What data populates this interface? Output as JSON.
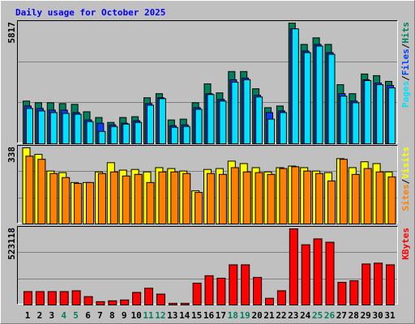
{
  "chart_data": [
    {
      "type": "bar",
      "title": "Daily usage for October 2025",
      "ylim": [
        0,
        5817
      ],
      "yticks": [
        5817
      ],
      "series": [
        {
          "name": "Hits",
          "color": "#00805C",
          "values": [
            2058,
            1979,
            1979,
            1939,
            1899,
            1543,
            1266,
            1029,
            1266,
            1306,
            2216,
            2414,
            1148,
            1187,
            1979,
            2889,
            2453,
            3482,
            3482,
            2651,
            1741,
            1820,
            5817,
            4788,
            5105,
            4788,
            2849,
            2414,
            3363,
            3284,
            3007
          ]
        },
        {
          "name": "Files",
          "color": "#0040FF",
          "values": [
            1820,
            1702,
            1622,
            1622,
            1504,
            1148,
            989,
            910,
            989,
            1108,
            1939,
            2216,
            871,
            910,
            1741,
            2414,
            2137,
            3086,
            3166,
            2335,
            1504,
            1583,
            5540,
            4471,
            4788,
            4392,
            2414,
            2058,
            3086,
            2928,
            2809
          ]
        },
        {
          "name": "Pages",
          "color": "#00E0FF",
          "values": [
            1702,
            1583,
            1504,
            1464,
            1425,
            1068,
            594,
            831,
            950,
            1029,
            1860,
            2176,
            791,
            831,
            1662,
            2374,
            2058,
            2968,
            3086,
            2255,
            1187,
            1504,
            5540,
            4392,
            4709,
            4313,
            2295,
            1978,
            3047,
            2849,
            2691
          ]
        }
      ]
    },
    {
      "type": "bar",
      "ylim": [
        0,
        338
      ],
      "yticks": [
        338
      ],
      "series": [
        {
          "name": "Visits",
          "color": "#FFFF00",
          "values": [
            338,
            309,
            235,
            228,
            184,
            184,
            231,
            272,
            239,
            242,
            231,
            250,
            246,
            235,
            147,
            242,
            246,
            279,
            268,
            250,
            231,
            250,
            257,
            250,
            235,
            228,
            290,
            250,
            276,
            268,
            231
          ]
        },
        {
          "name": "Sites",
          "color": "#FF8000",
          "values": [
            301,
            287,
            224,
            206,
            180,
            184,
            224,
            231,
            213,
            220,
            184,
            231,
            231,
            224,
            140,
            224,
            220,
            250,
            231,
            228,
            220,
            246,
            254,
            235,
            224,
            191,
            287,
            220,
            246,
            231,
            209
          ]
        }
      ]
    },
    {
      "type": "bar",
      "ylim": [
        0,
        523118
      ],
      "yticks": [
        523118
      ],
      "categories": [
        "1",
        "2",
        "3",
        "4",
        "5",
        "6",
        "7",
        "8",
        "9",
        "10",
        "11",
        "12",
        "13",
        "14",
        "15",
        "16",
        "17",
        "18",
        "19",
        "20",
        "21",
        "22",
        "23",
        "24",
        "25",
        "26",
        "27",
        "28",
        "29",
        "30",
        "31"
      ],
      "category_colors": [
        "#000000",
        "#000000",
        "#000000",
        "#00805C",
        "#00805C",
        "#000000",
        "#000000",
        "#000000",
        "#000000",
        "#000000",
        "#00805C",
        "#00805C",
        "#000000",
        "#000000",
        "#000000",
        "#000000",
        "#000000",
        "#00805C",
        "#00805C",
        "#000000",
        "#000000",
        "#000000",
        "#000000",
        "#000000",
        "#00805C",
        "#00805C",
        "#000000",
        "#000000",
        "#000000",
        "#000000",
        "#000000"
      ],
      "series": [
        {
          "name": "KBytes",
          "color": "#FF0000",
          "values": [
            91977,
            91977,
            91977,
            91977,
            97726,
            57486,
            22994,
            28743,
            34492,
            86229,
            114972,
            74732,
            11497,
            11497,
            149464,
            201201,
            183955,
            275933,
            275933,
            189704,
            45989,
            97726,
            523118,
            413899,
            454139,
            431145,
            155212,
            166709,
            281681,
            287430,
            275933
          ]
        }
      ]
    }
  ]
}
